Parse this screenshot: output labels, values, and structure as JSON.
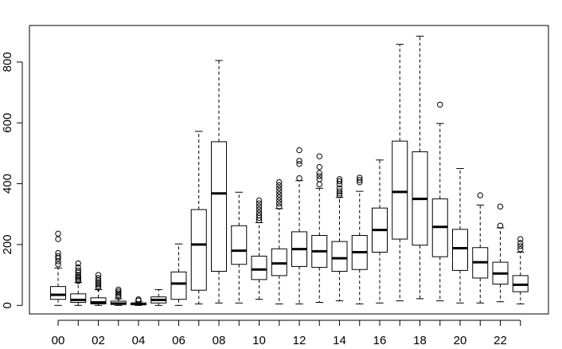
{
  "chart_data": {
    "type": "box",
    "title": "",
    "xlabel": "",
    "ylabel": "",
    "ylim": [
      -28,
      920
    ],
    "yticks": [
      0,
      200,
      400,
      600,
      800
    ],
    "xtick_labels": [
      "00",
      "02",
      "04",
      "06",
      "08",
      "10",
      "12",
      "14",
      "16",
      "18",
      "20",
      "22"
    ],
    "categories": [
      "00",
      "01",
      "02",
      "03",
      "04",
      "05",
      "06",
      "07",
      "08",
      "09",
      "10",
      "11",
      "12",
      "13",
      "14",
      "15",
      "16",
      "17",
      "18",
      "19",
      "20",
      "21",
      "22",
      "23"
    ],
    "boxes": [
      {
        "cat": "00",
        "whisker_low": 0,
        "q1": 20,
        "median": 35,
        "q3": 62,
        "whisker_high": 123,
        "outliers": [
          135,
          145,
          155,
          162,
          172,
          218,
          236
        ]
      },
      {
        "cat": "01",
        "whisker_low": 0,
        "q1": 10,
        "median": 18,
        "q3": 38,
        "whisker_high": 75,
        "outliers": [
          80,
          85,
          90,
          95,
          100,
          108,
          115,
          125,
          138
        ]
      },
      {
        "cat": "02",
        "whisker_low": 0,
        "q1": 5,
        "median": 10,
        "q3": 25,
        "whisker_high": 52,
        "outliers": [
          58,
          64,
          70,
          76,
          82,
          90,
          100
        ]
      },
      {
        "cat": "03",
        "whisker_low": 0,
        "q1": 3,
        "median": 6,
        "q3": 14,
        "whisker_high": 22,
        "outliers": [
          28,
          34,
          40,
          46,
          52
        ]
      },
      {
        "cat": "04",
        "whisker_low": 0,
        "q1": 2,
        "median": 5,
        "q3": 8,
        "whisker_high": 12,
        "outliers": [
          16,
          20
        ]
      },
      {
        "cat": "05",
        "whisker_low": 0,
        "q1": 8,
        "median": 18,
        "q3": 28,
        "whisker_high": 52,
        "outliers": []
      },
      {
        "cat": "06",
        "whisker_low": 0,
        "q1": 20,
        "median": 72,
        "q3": 110,
        "whisker_high": 202,
        "outliers": []
      },
      {
        "cat": "07",
        "whisker_low": 5,
        "q1": 50,
        "median": 200,
        "q3": 315,
        "whisker_high": 572,
        "outliers": []
      },
      {
        "cat": "08",
        "whisker_low": 8,
        "q1": 112,
        "median": 368,
        "q3": 538,
        "whisker_high": 805,
        "outliers": []
      },
      {
        "cat": "09",
        "whisker_low": 8,
        "q1": 135,
        "median": 180,
        "q3": 262,
        "whisker_high": 372,
        "outliers": []
      },
      {
        "cat": "10",
        "whisker_low": 20,
        "q1": 85,
        "median": 118,
        "q3": 162,
        "whisker_high": 272,
        "outliers": [
          280,
          288,
          296,
          305,
          315,
          325,
          335,
          345
        ]
      },
      {
        "cat": "11",
        "whisker_low": 5,
        "q1": 98,
        "median": 138,
        "q3": 186,
        "whisker_high": 318,
        "outliers": [
          325,
          335,
          345,
          355,
          365,
          375,
          385,
          395,
          405
        ]
      },
      {
        "cat": "12",
        "whisker_low": 5,
        "q1": 128,
        "median": 185,
        "q3": 242,
        "whisker_high": 410,
        "outliers": [
          418,
          465,
          475,
          510
        ]
      },
      {
        "cat": "13",
        "whisker_low": 10,
        "q1": 125,
        "median": 178,
        "q3": 230,
        "whisker_high": 385,
        "outliers": [
          398,
          415,
          425,
          435,
          455,
          490
        ]
      },
      {
        "cat": "14",
        "whisker_low": 15,
        "q1": 112,
        "median": 155,
        "q3": 210,
        "whisker_high": 355,
        "outliers": [
          362,
          368,
          375,
          385,
          398,
          408,
          415
        ]
      },
      {
        "cat": "15",
        "whisker_low": 5,
        "q1": 118,
        "median": 175,
        "q3": 230,
        "whisker_high": 375,
        "outliers": [
          405,
          412,
          420
        ]
      },
      {
        "cat": "16",
        "whisker_low": 8,
        "q1": 175,
        "median": 248,
        "q3": 320,
        "whisker_high": 478,
        "outliers": []
      },
      {
        "cat": "17",
        "whisker_low": 15,
        "q1": 218,
        "median": 373,
        "q3": 540,
        "whisker_high": 858,
        "outliers": []
      },
      {
        "cat": "18",
        "whisker_low": 22,
        "q1": 198,
        "median": 350,
        "q3": 505,
        "whisker_high": 885,
        "outliers": []
      },
      {
        "cat": "19",
        "whisker_low": 15,
        "q1": 160,
        "median": 258,
        "q3": 350,
        "whisker_high": 598,
        "outliers": [
          660
        ]
      },
      {
        "cat": "20",
        "whisker_low": 8,
        "q1": 115,
        "median": 188,
        "q3": 250,
        "whisker_high": 450,
        "outliers": []
      },
      {
        "cat": "21",
        "whisker_low": 8,
        "q1": 90,
        "median": 142,
        "q3": 190,
        "whisker_high": 330,
        "outliers": [
          362
        ]
      },
      {
        "cat": "22",
        "whisker_low": 12,
        "q1": 70,
        "median": 105,
        "q3": 142,
        "whisker_high": 255,
        "outliers": [
          262,
          325
        ]
      },
      {
        "cat": "23",
        "whisker_low": 5,
        "q1": 45,
        "median": 68,
        "q3": 98,
        "whisker_high": 175,
        "outliers": [
          185,
          195,
          205,
          218
        ]
      }
    ],
    "grid": false,
    "legend": "none",
    "colors": {
      "box_fill": "#ffffff",
      "line": "#000000"
    }
  }
}
